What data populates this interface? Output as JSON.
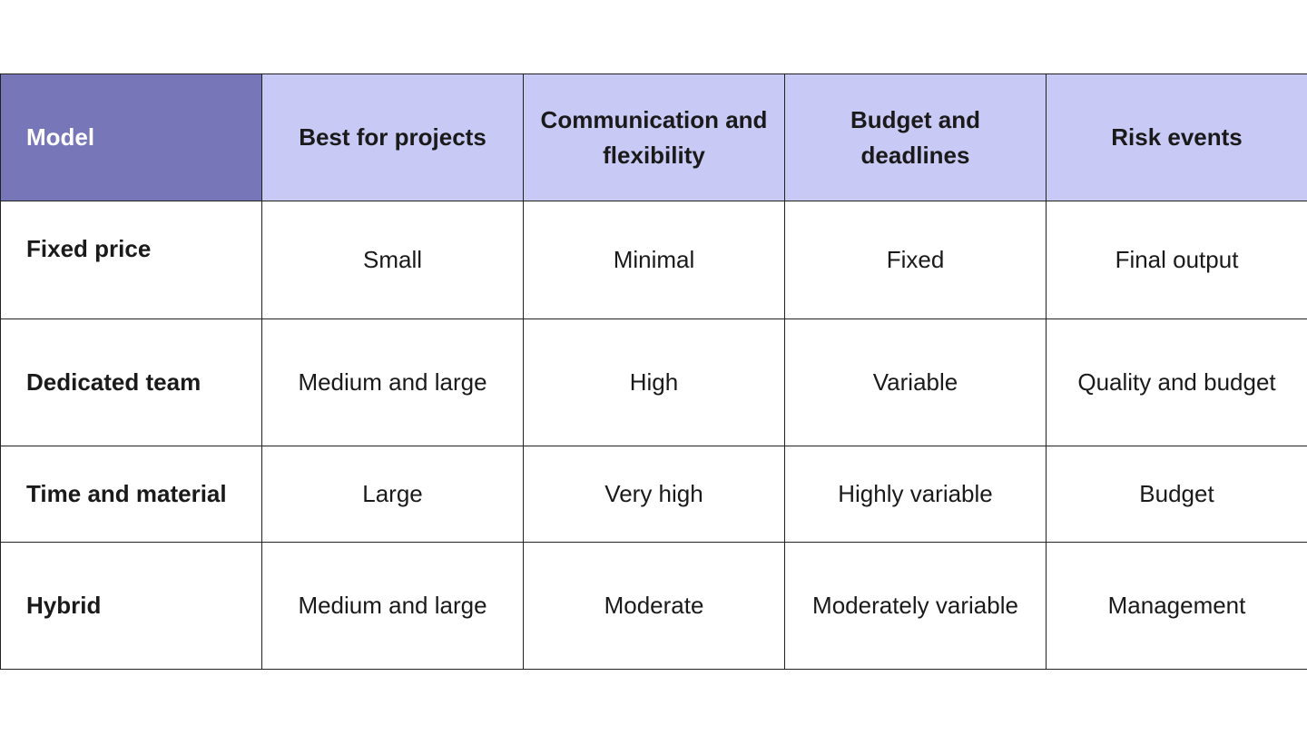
{
  "table": {
    "headers": [
      "Model",
      "Best for projects",
      "Communication and flexibility",
      "Budget and deadlines",
      "Risk events"
    ],
    "rows": [
      [
        "Fixed price",
        "Small",
        "Minimal",
        "Fixed",
        "Final output"
      ],
      [
        "Dedicated team",
        "Medium and large",
        "High",
        "Variable",
        "Quality and budget"
      ],
      [
        "Time and material",
        "Large",
        "Very high",
        "Highly variable",
        "Budget"
      ],
      [
        "Hybrid",
        "Medium and large",
        "Moderate",
        "Moderately variable",
        "Management"
      ]
    ]
  },
  "colors": {
    "model_header_bg": "#7676b9",
    "header_bg": "#c9c9f5",
    "border": "#222222"
  }
}
